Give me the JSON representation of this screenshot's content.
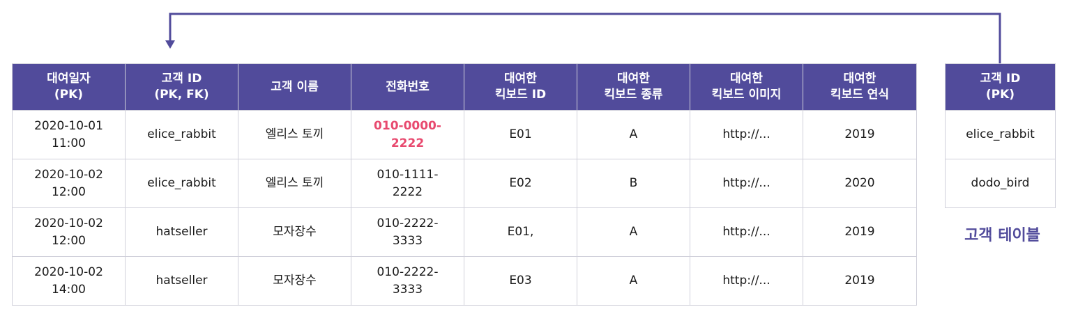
{
  "rental_table": {
    "headers": [
      "대여일자\n(PK)",
      "고객 ID\n(PK, FK)",
      "고객 이름",
      "전화번호",
      "대여한\n킥보드 ID",
      "대여한\n킥보드 종류",
      "대여한\n킥보드 이미지",
      "대여한\n킥보드 연식"
    ],
    "rows": [
      [
        "2020-10-01\n11:00",
        "elice_rabbit",
        "엘리스 토끼",
        "010-0000-\n2222",
        "E01",
        "A",
        "http://...",
        "2019"
      ],
      [
        "2020-10-02\n12:00",
        "elice_rabbit",
        "엘리스 토끼",
        "010-1111-\n2222",
        "E02",
        "B",
        "http://...",
        "2020"
      ],
      [
        "2020-10-02\n12:00",
        "hatseller",
        "모자장수",
        "010-2222-\n3333",
        "E01,",
        "A",
        "http://...",
        "2019"
      ],
      [
        "2020-10-02\n14:00",
        "hatseller",
        "모자장수",
        "010-2222-\n3333",
        "E03",
        "A",
        "http://...",
        "2019"
      ]
    ],
    "highlight_color": "#e84a6f"
  },
  "customer_table": {
    "header": "고객 ID\n(PK)",
    "rows": [
      "elice_rabbit",
      "dodo_bird"
    ],
    "label": "고객 테이블"
  },
  "colors": {
    "header_bg": "#514b9b",
    "arrow": "#514b9b"
  }
}
